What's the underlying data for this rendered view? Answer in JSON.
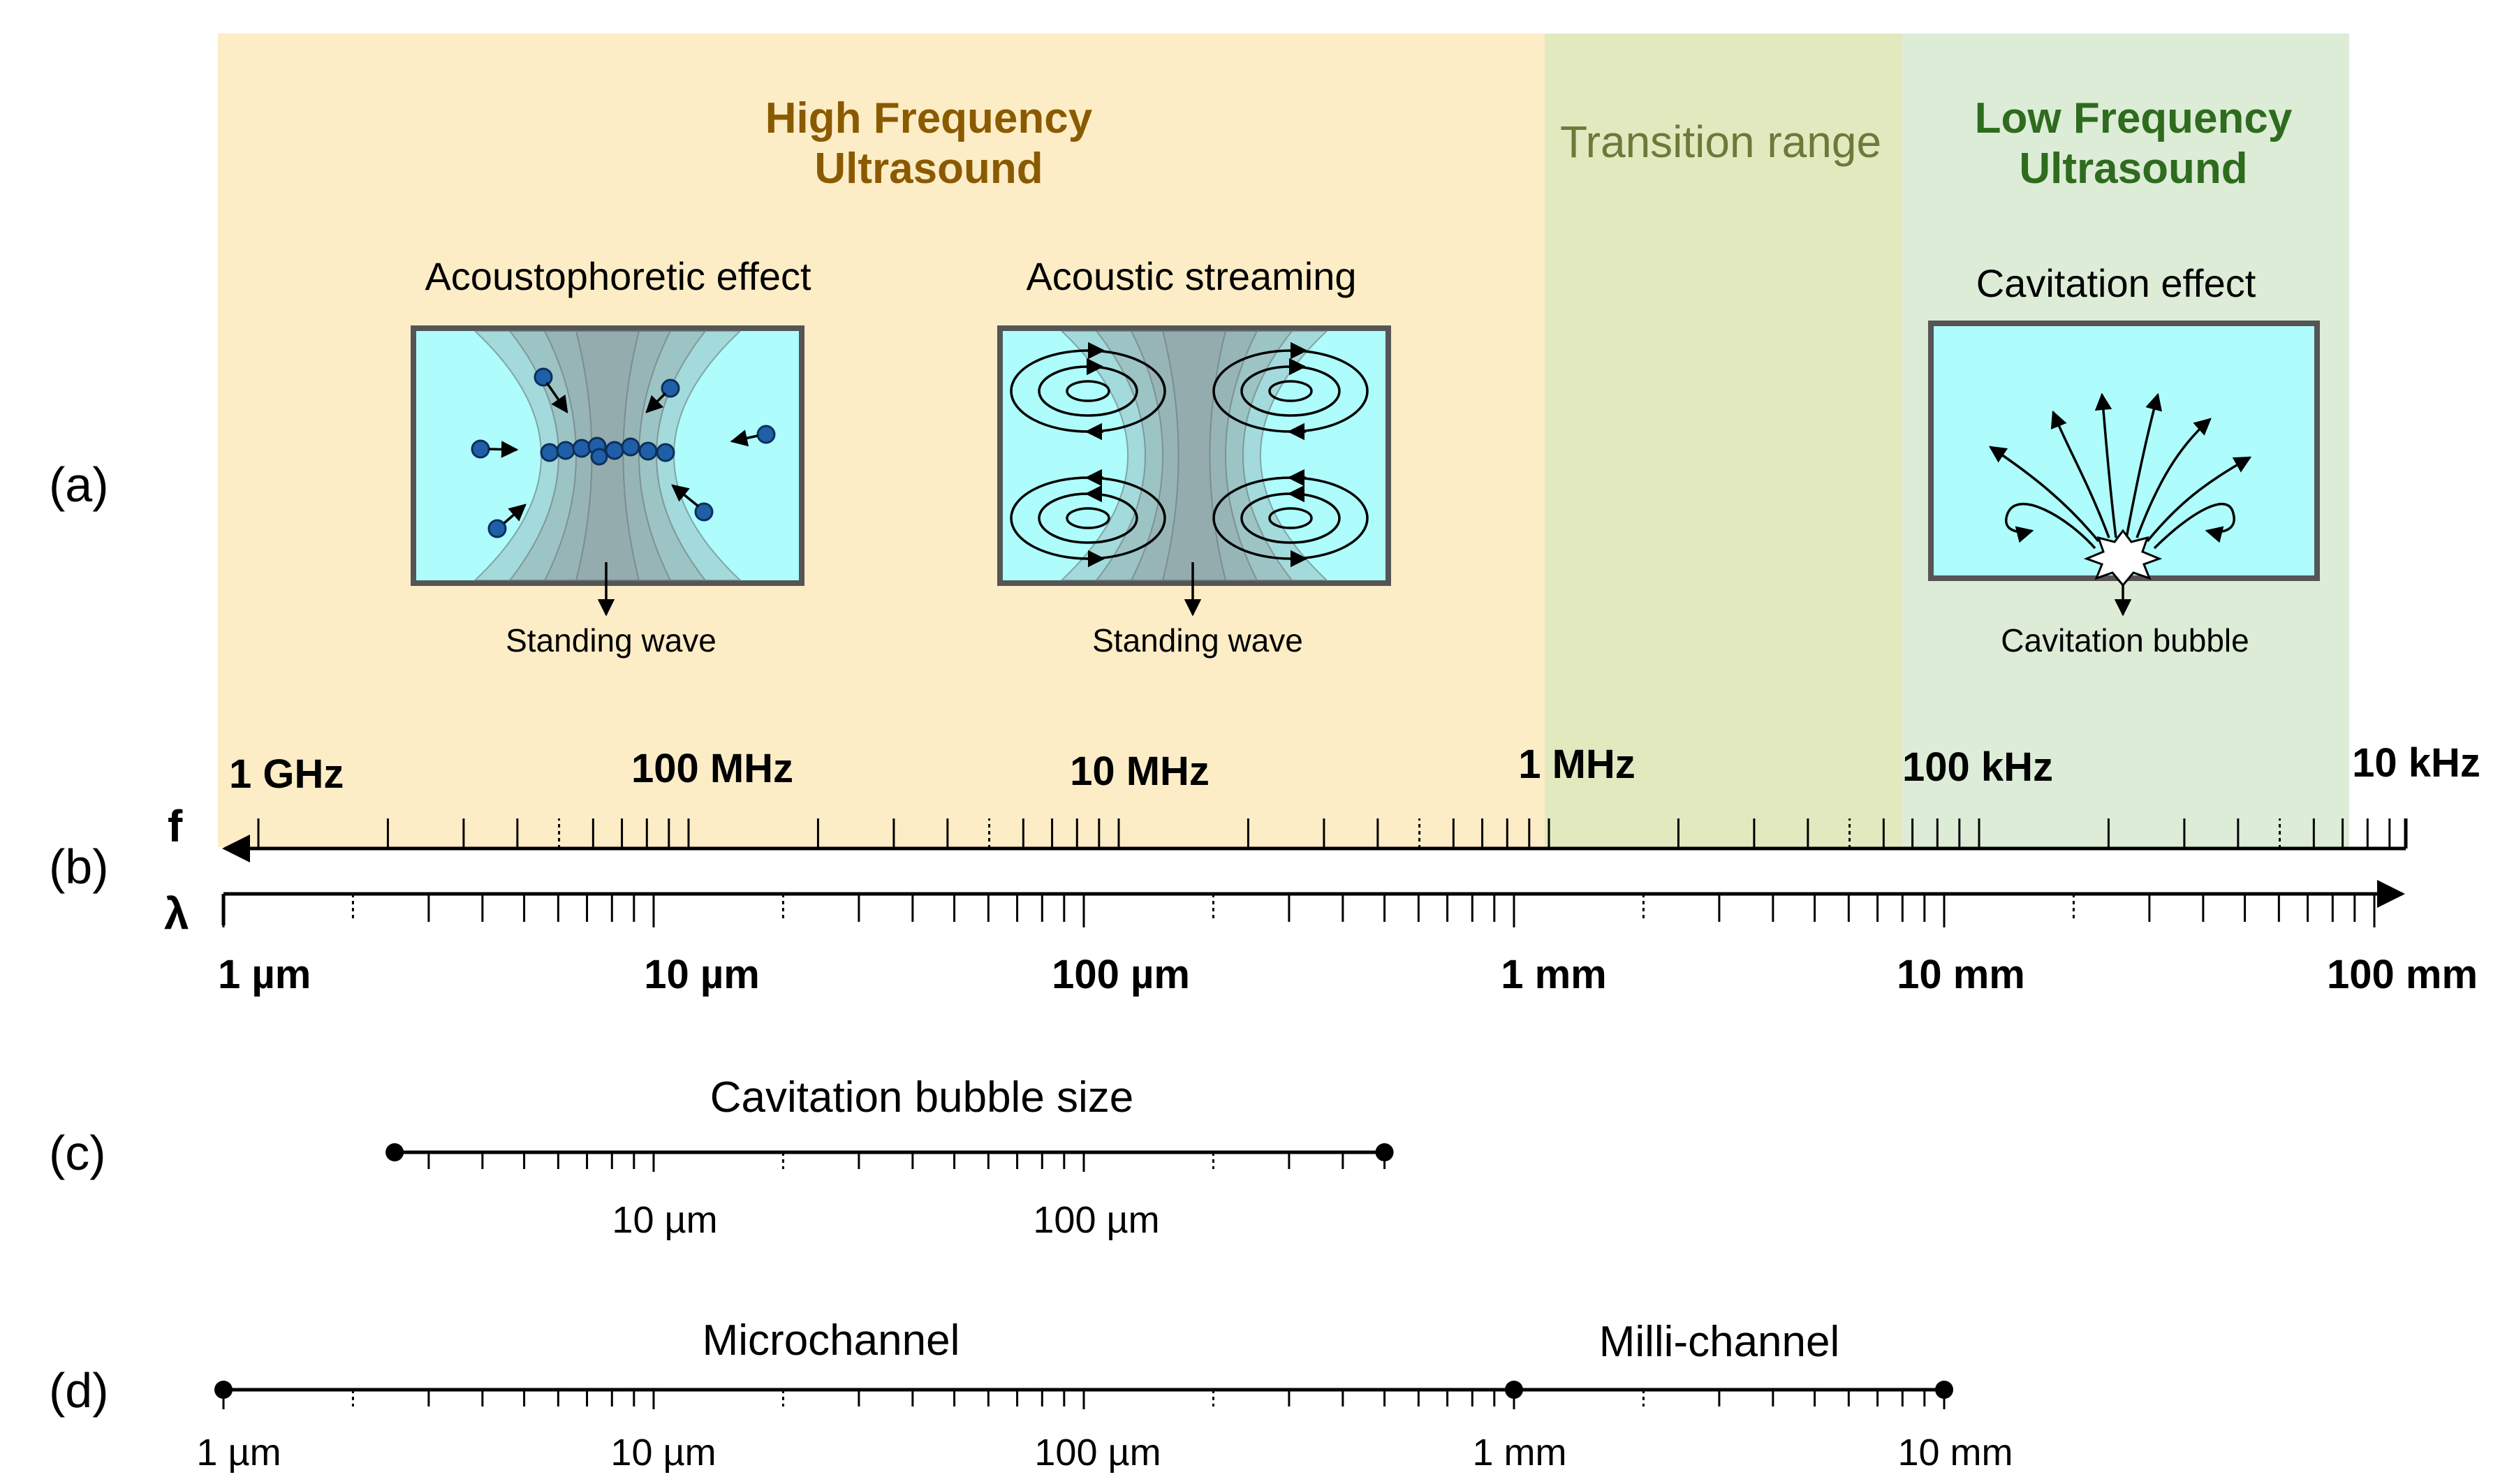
{
  "row_labels": {
    "a": "(a)",
    "b": "(b)",
    "c": "(c)",
    "d": "(d)"
  },
  "regions": {
    "high": {
      "line1": "High Frequency",
      "line2": "Ultrasound",
      "color": "#fdedc6",
      "text_color": "#8a5a00"
    },
    "transition": {
      "label": "Transition range",
      "color": "#e2e9bf",
      "text_color": "#6b7a3a"
    },
    "low": {
      "line1": "Low Frequency",
      "line2": "Ultrasound",
      "color": "#dcecd6",
      "text_color": "#2e6b1e"
    }
  },
  "effects": {
    "acoustophoretic": {
      "title": "Acoustophoretic effect",
      "caption": "Standing wave"
    },
    "streaming": {
      "title": "Acoustic streaming",
      "caption": "Standing wave"
    },
    "cavitation": {
      "title": "Cavitation effect",
      "caption": "Cavitation bubble"
    }
  },
  "colors": {
    "box_fill": "#aefcfc",
    "box_stroke": "#555555",
    "particle": "#1f5fa8",
    "axis": "#000000"
  },
  "axis_labels": {
    "frequency": "f",
    "wavelength": "λ"
  },
  "frequency_ticks": [
    "1 GHz",
    "100 MHz",
    "10 MHz",
    "1 MHz",
    "100 kHz",
    "10 kHz"
  ],
  "wavelength_ticks": [
    "1 µm",
    "10 µm",
    "100 µm",
    "1 mm",
    "10 mm",
    "100 mm"
  ],
  "bubble_size": {
    "title": "Cavitation bubble size",
    "range_um": [
      2.5,
      500
    ],
    "ticks": [
      "10 µm",
      "100 µm"
    ]
  },
  "channels": {
    "micro": {
      "label": "Microchannel",
      "range_um": [
        1,
        1000
      ]
    },
    "milli": {
      "label": "Milli-channel",
      "range_um": [
        1000,
        10000
      ]
    },
    "ticks": [
      "1 µm",
      "10 µm",
      "100 µm",
      "1 mm",
      "10 mm"
    ]
  }
}
